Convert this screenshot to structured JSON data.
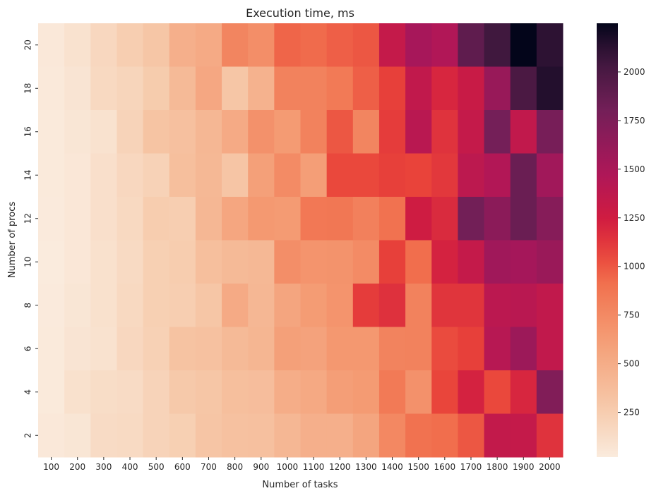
{
  "chart_data": {
    "type": "heatmap",
    "title": "Execution time, ms",
    "xlabel": "Number of tasks",
    "ylabel": "Number of procs",
    "x_categories": [
      "100",
      "200",
      "300",
      "400",
      "500",
      "600",
      "700",
      "800",
      "900",
      "1000",
      "1100",
      "1200",
      "1300",
      "1400",
      "1500",
      "1600",
      "1700",
      "1800",
      "1900",
      "2000"
    ],
    "y_categories": [
      "20",
      "18",
      "16",
      "14",
      "12",
      "10",
      "8",
      "6",
      "4",
      "2"
    ],
    "values": [
      [
        40,
        90,
        170,
        240,
        300,
        480,
        520,
        780,
        720,
        950,
        930,
        970,
        1000,
        1330,
        1520,
        1460,
        1900,
        2050,
        2250,
        2120
      ],
      [
        35,
        70,
        160,
        190,
        260,
        400,
        540,
        300,
        460,
        800,
        800,
        850,
        970,
        1080,
        1350,
        1200,
        1300,
        1600,
        2000,
        2150
      ],
      [
        30,
        60,
        90,
        200,
        320,
        350,
        420,
        520,
        700,
        640,
        800,
        1000,
        780,
        1100,
        1400,
        1140,
        1330,
        1800,
        1350,
        1780
      ],
      [
        30,
        50,
        110,
        170,
        210,
        360,
        410,
        310,
        600,
        740,
        610,
        1050,
        1050,
        1080,
        1070,
        1120,
        1380,
        1450,
        1850,
        1550
      ],
      [
        25,
        50,
        110,
        160,
        250,
        240,
        420,
        550,
        650,
        640,
        860,
        870,
        810,
        900,
        1260,
        1180,
        1810,
        1670,
        1850,
        1700
      ],
      [
        20,
        50,
        100,
        150,
        230,
        250,
        360,
        400,
        410,
        720,
        680,
        690,
        740,
        1080,
        920,
        1220,
        1330,
        1560,
        1530,
        1590
      ],
      [
        25,
        60,
        100,
        160,
        230,
        240,
        300,
        520,
        420,
        560,
        630,
        680,
        1100,
        1150,
        800,
        1130,
        1130,
        1390,
        1400,
        1350
      ],
      [
        30,
        70,
        90,
        170,
        220,
        330,
        340,
        400,
        430,
        600,
        580,
        660,
        660,
        790,
        800,
        1040,
        1080,
        1420,
        1580,
        1350
      ],
      [
        30,
        100,
        130,
        140,
        200,
        280,
        300,
        360,
        370,
        500,
        530,
        610,
        640,
        850,
        700,
        1060,
        1220,
        1050,
        1200,
        1730
      ],
      [
        40,
        60,
        140,
        150,
        200,
        230,
        310,
        340,
        350,
        420,
        480,
        480,
        560,
        760,
        900,
        920,
        1000,
        1340,
        1330,
        1140
      ]
    ],
    "colorbar": {
      "ticks": [
        250,
        500,
        750,
        1000,
        1250,
        1500,
        1750,
        2000
      ],
      "range": [
        20,
        2250
      ]
    },
    "colormap": "rocket_r",
    "grid": false,
    "legend": "colorbar-right"
  }
}
